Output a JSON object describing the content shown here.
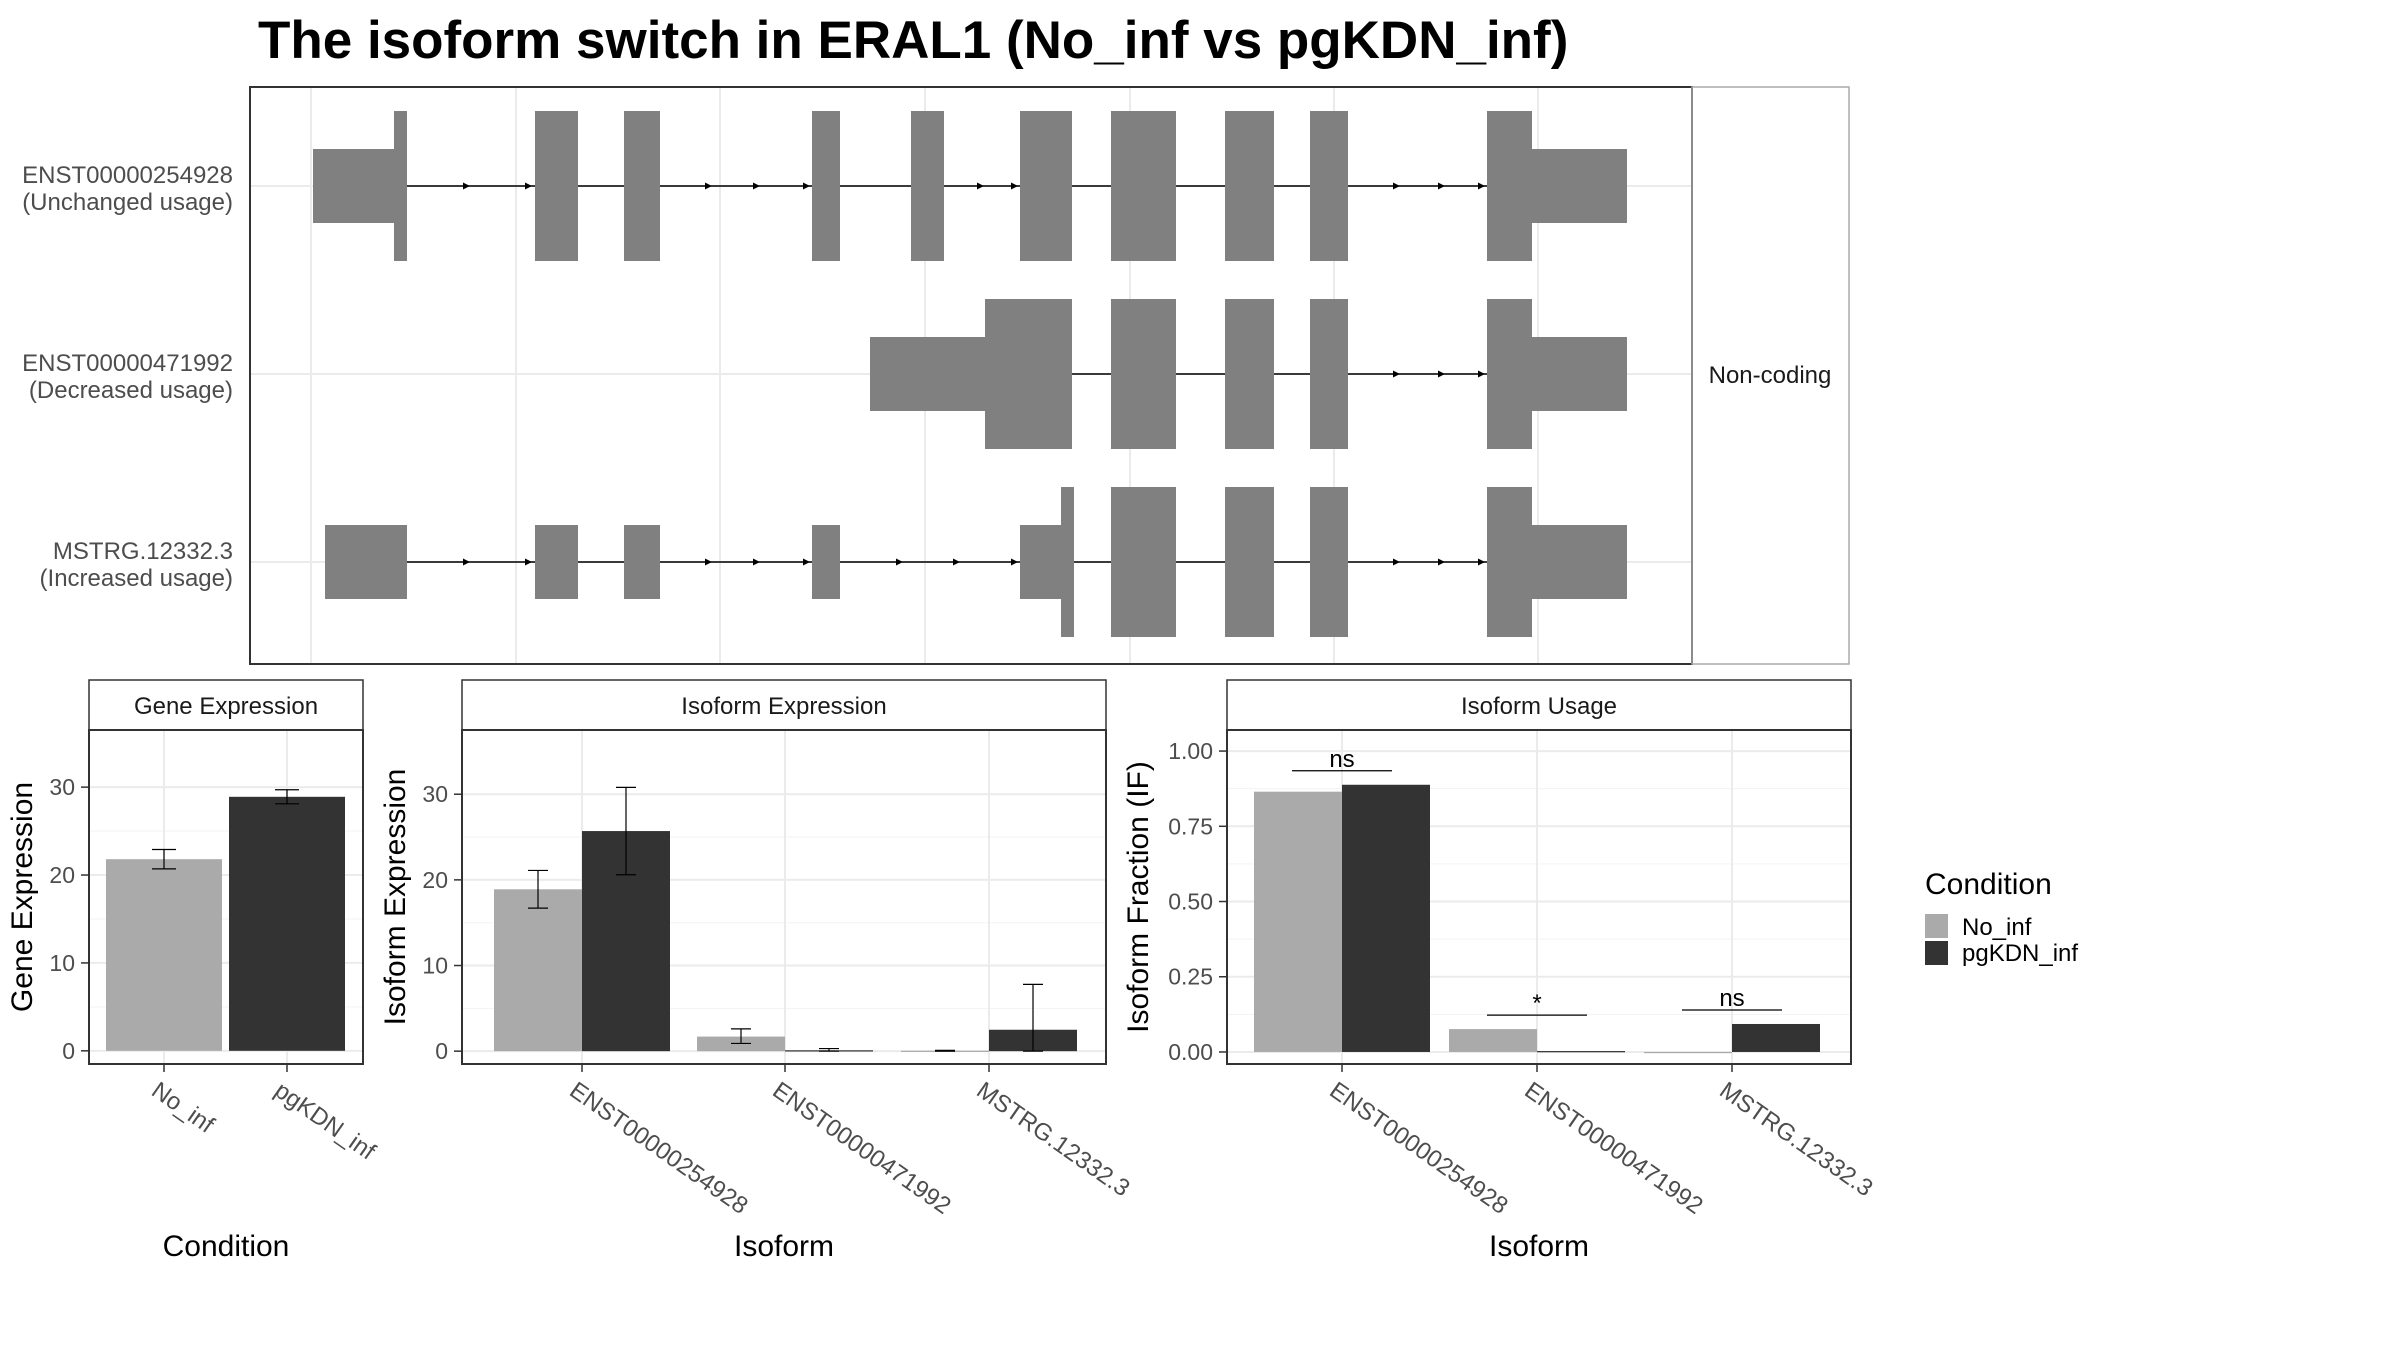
{
  "title": "The isoform switch in ERAL1 (No_inf vs pgKDN_inf)",
  "colors": {
    "exon": "#808080",
    "no_inf": "#aaaaaa",
    "pgkdn_inf": "#333333",
    "grid": "#ebebeb",
    "frame": "#333333"
  },
  "isoform_structure": {
    "strip_label": "Non-coding",
    "isoforms": [
      {
        "id": "ENST00000254928",
        "usage": "(Unchanged usage)"
      },
      {
        "id": "ENST00000471992",
        "usage": "(Decreased usage)"
      },
      {
        "id": "MSTRG.12332.3",
        "usage": "(Increased usage)"
      }
    ]
  },
  "legend": {
    "title": "Condition",
    "items": [
      {
        "label": "No_inf",
        "color": "#aaaaaa"
      },
      {
        "label": "pgKDN_inf",
        "color": "#333333"
      }
    ]
  },
  "chart_data": [
    {
      "type": "bar",
      "panel": "Gene Expression",
      "xlabel": "Condition",
      "ylabel": "Gene Expression",
      "categories": [
        "No_inf",
        "pgKDN_inf"
      ],
      "values": [
        21.8,
        28.9
      ],
      "error_low": [
        20.7,
        28.1
      ],
      "error_high": [
        22.9,
        29.7
      ],
      "ylim": [
        -1.5,
        36.5
      ],
      "yticks": [
        0,
        10,
        20,
        30
      ],
      "grid": true
    },
    {
      "type": "bar",
      "panel": "Isoform Expression",
      "xlabel": "Isoform",
      "ylabel": "Isoform Expression",
      "categories": [
        "ENST00000254928",
        "ENST00000471992",
        "MSTRG.12332.3"
      ],
      "series": [
        {
          "name": "No_inf",
          "values": [
            18.9,
            1.7,
            0.05
          ],
          "error_low": [
            16.7,
            0.9,
            0.0
          ],
          "error_high": [
            21.1,
            2.6,
            0.1
          ]
        },
        {
          "name": "pgKDN_inf",
          "values": [
            25.7,
            0.1,
            2.5
          ],
          "error_low": [
            20.6,
            0.0,
            0.0
          ],
          "error_high": [
            30.8,
            0.3,
            7.8
          ]
        }
      ],
      "ylim": [
        -1.5,
        37.5
      ],
      "yticks": [
        0,
        10,
        20,
        30
      ],
      "grid": true
    },
    {
      "type": "bar",
      "panel": "Isoform Usage",
      "xlabel": "Isoform",
      "ylabel": "Isoform Fraction (IF)",
      "categories": [
        "ENST00000254928",
        "ENST00000471992",
        "MSTRG.12332.3"
      ],
      "series": [
        {
          "name": "No_inf",
          "values": [
            0.865,
            0.076,
            0.0
          ]
        },
        {
          "name": "pgKDN_inf",
          "values": [
            0.888,
            0.003,
            0.093
          ]
        }
      ],
      "significance": [
        "ns",
        "*",
        "ns"
      ],
      "ylim": [
        -0.04,
        1.07
      ],
      "yticks": [
        0.0,
        0.25,
        0.5,
        0.75,
        1.0
      ],
      "ytick_labels": [
        "0.00",
        "0.25",
        "0.50",
        "0.75",
        "1.00"
      ],
      "grid": true
    }
  ]
}
